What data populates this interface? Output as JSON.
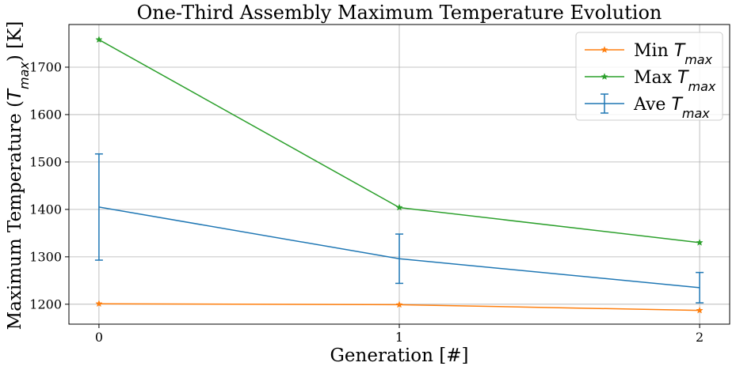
{
  "chart_data": {
    "type": "line",
    "title": "One-Third Assembly Maximum Temperature Evolution",
    "xlabel": "Generation [#]",
    "ylabel": {
      "prefix": "Maximum Temperature (",
      "math": "T",
      "sub": "max",
      "suffix": ") [K]"
    },
    "x": [
      0,
      1,
      2
    ],
    "x_ticks": [
      "0",
      "1",
      "2"
    ],
    "xlim": [
      -0.1,
      2.1
    ],
    "ylim": [
      1158,
      1790
    ],
    "y_ticks": [
      1200,
      1300,
      1400,
      1500,
      1600,
      1700
    ],
    "grid": true,
    "legend_position": "top-right",
    "series": [
      {
        "name": "Min",
        "math": "T",
        "sub": "max",
        "color": "#ff7f0e",
        "marker": "star",
        "values": [
          1201,
          1199,
          1187
        ]
      },
      {
        "name": "Max",
        "math": "T",
        "sub": "max",
        "color": "#2ca02c",
        "marker": "star",
        "values": [
          1758,
          1404,
          1330
        ]
      },
      {
        "name": "Ave",
        "math": "T",
        "sub": "max",
        "color": "#1f77b4",
        "marker": "none",
        "errorbar": true,
        "values": [
          1405,
          1296,
          1235
        ],
        "errors": [
          112,
          52,
          32
        ]
      }
    ]
  }
}
